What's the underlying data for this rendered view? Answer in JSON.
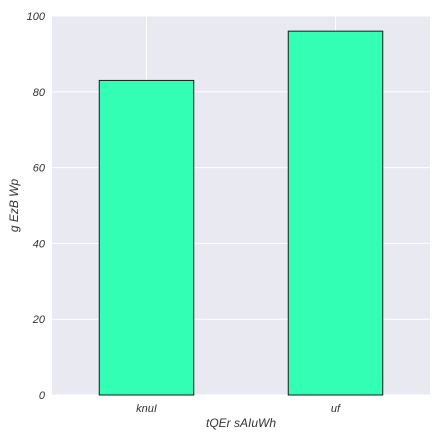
{
  "chart_data": {
    "type": "bar",
    "categories": [
      "knuI",
      "uf"
    ],
    "series": [
      {
        "values": [
          83,
          96
        ]
      }
    ],
    "title": "",
    "xlabel": "tQEr  sAIuWh",
    "ylabel": "g EzB Wp",
    "ylim": [
      0,
      100
    ],
    "yticks": [
      0,
      20,
      40,
      60,
      80,
      100
    ],
    "grid": true,
    "legend": "none"
  },
  "colors": {
    "plot_background": "#e9e9f2",
    "grid": "#ffffff",
    "bar_fill": "#33ffb4",
    "bar_edge": "#1a1a1a",
    "text": "#333333"
  }
}
